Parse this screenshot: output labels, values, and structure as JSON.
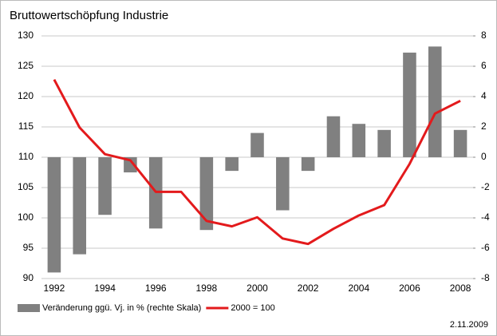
{
  "chart_data": {
    "type": "bar",
    "title": "Bruttowertschöpfung Industrie",
    "categories": [
      "1992",
      null,
      "1994",
      null,
      "1996",
      null,
      "1998",
      null,
      "2000",
      null,
      "2002",
      null,
      "2004",
      null,
      "2006",
      null,
      "2008"
    ],
    "series": [
      {
        "name": "Veränderung ggü. Vj. in % (rechte Skala)",
        "type": "bar",
        "axis": "y2",
        "color": "#808080",
        "values": [
          -7.6,
          -6.4,
          -3.8,
          -1.0,
          -4.7,
          0,
          -4.8,
          -0.9,
          1.6,
          -3.5,
          -0.9,
          2.7,
          2.2,
          1.8,
          6.9,
          7.3,
          1.8
        ]
      },
      {
        "name": "2000 = 100",
        "type": "line",
        "axis": "y",
        "color": "#e31a1c",
        "values": [
          122.8,
          114.9,
          110.5,
          109.5,
          104.3,
          104.3,
          99.5,
          98.6,
          100.1,
          96.6,
          95.7,
          98.2,
          100.4,
          102.1,
          108.9,
          117.2,
          119.3
        ]
      }
    ],
    "ylim": [
      90,
      130
    ],
    "yticks": [
      90,
      95,
      100,
      105,
      110,
      115,
      120,
      125,
      130
    ],
    "y2lim": [
      -8,
      8
    ],
    "y2ticks": [
      -8,
      -6,
      -4,
      -2,
      0,
      2,
      4,
      6,
      8
    ],
    "grid": true,
    "legend": "bottom",
    "date": "2.11.2009"
  }
}
